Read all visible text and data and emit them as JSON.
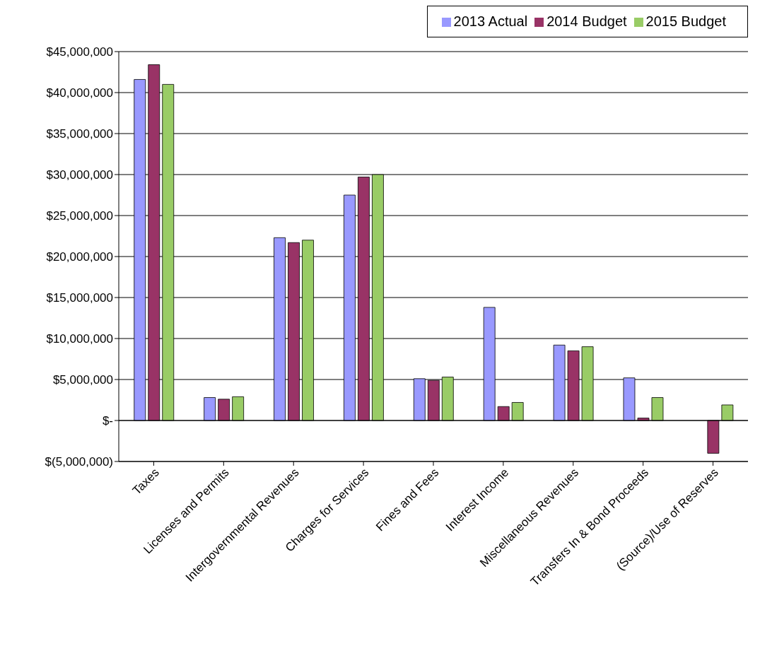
{
  "chart_data": {
    "type": "bar",
    "categories": [
      "Taxes",
      "Licenses and Permits",
      "Intergovernmental Revenues",
      "Charges for Services",
      "Fines and Fees",
      "Interest Income",
      "Miscellaneous Revenues",
      "Transfers In & Bond Proceeds",
      "(Source)/Use of Reserves"
    ],
    "series": [
      {
        "name": "2013 Actual",
        "color": "#9999ff",
        "values": [
          41600000,
          2800000,
          22300000,
          27500000,
          5100000,
          13800000,
          9200000,
          5200000,
          0
        ]
      },
      {
        "name": "2014 Budget",
        "color": "#993366",
        "values": [
          43400000,
          2600000,
          21700000,
          29700000,
          4900000,
          1700000,
          8500000,
          300000,
          -4000000
        ]
      },
      {
        "name": "2015 Budget",
        "color": "#99cc66",
        "values": [
          41000000,
          2900000,
          22000000,
          30000000,
          5300000,
          2200000,
          9000000,
          2800000,
          1900000
        ]
      }
    ],
    "ylim": [
      -5000000,
      45000000
    ],
    "yticks": [
      {
        "value": -5000000,
        "label": "$(5,000,000)"
      },
      {
        "value": 0,
        "label": "$-"
      },
      {
        "value": 5000000,
        "label": "$5,000,000"
      },
      {
        "value": 10000000,
        "label": "$10,000,000"
      },
      {
        "value": 15000000,
        "label": "$15,000,000"
      },
      {
        "value": 20000000,
        "label": "$20,000,000"
      },
      {
        "value": 25000000,
        "label": "$25,000,000"
      },
      {
        "value": 30000000,
        "label": "$30,000,000"
      },
      {
        "value": 35000000,
        "label": "$35,000,000"
      },
      {
        "value": 40000000,
        "label": "$40,000,000"
      },
      {
        "value": 45000000,
        "label": "$45,000,000"
      }
    ],
    "grid": "y",
    "legend": "top right"
  }
}
